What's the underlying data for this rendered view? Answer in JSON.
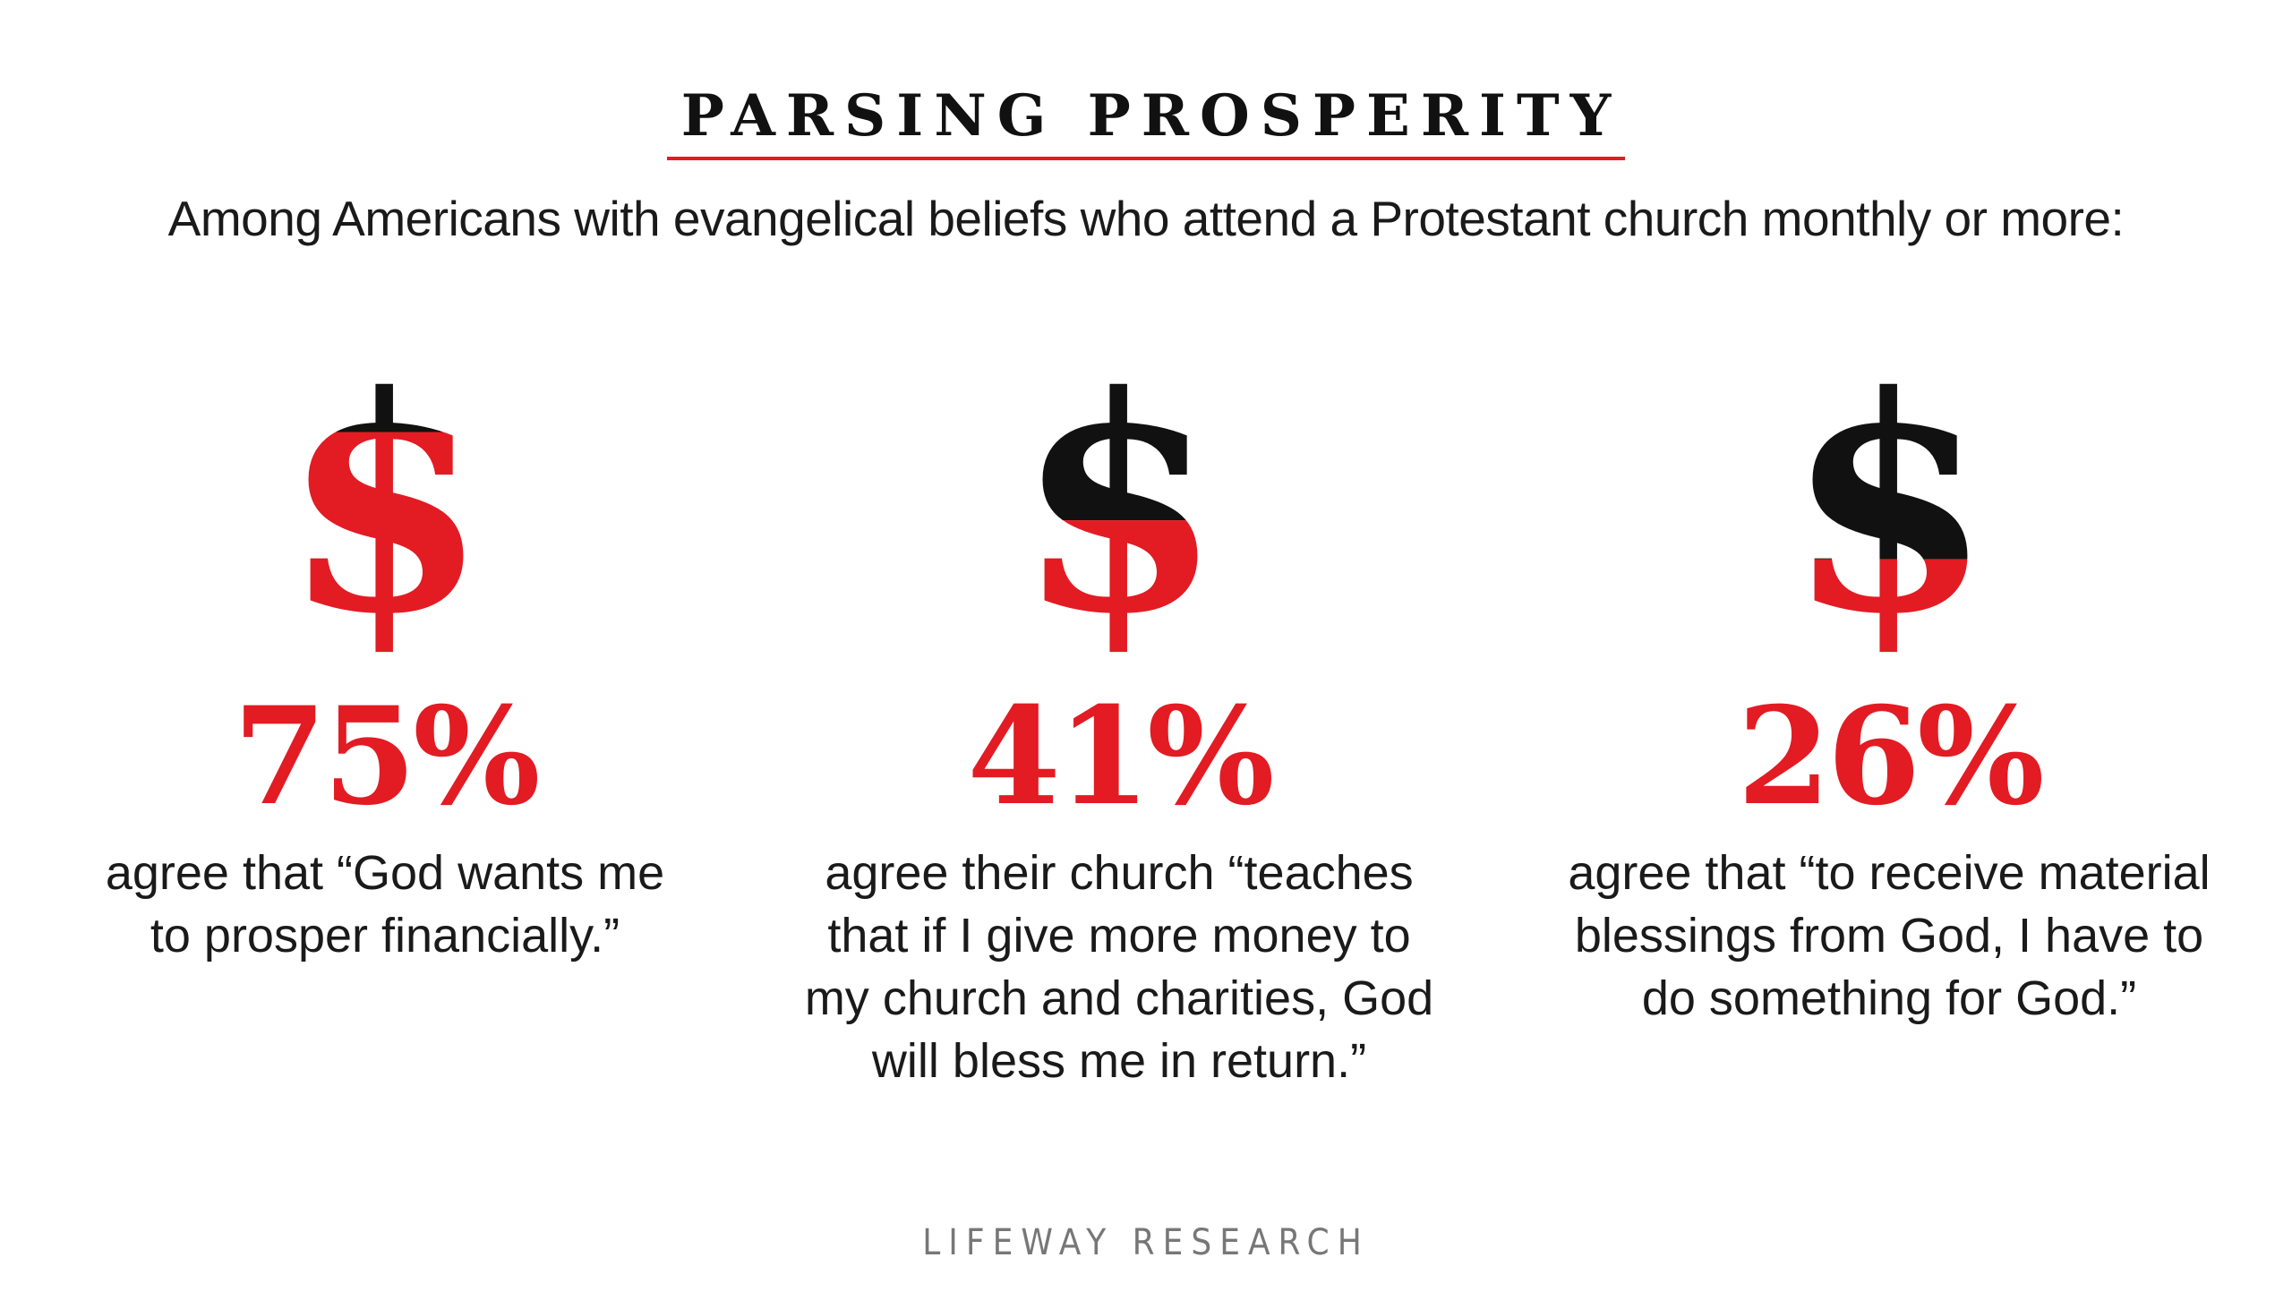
{
  "title": "PARSING PROSPERITY",
  "subtitle": "Among Americans with evangelical beliefs who attend a Protestant church monthly or more:",
  "footer": "LIFEWAY RESEARCH",
  "colors": {
    "accent_red": "#e31b23",
    "dollar_black": "#111111",
    "text": "#1a1a1a",
    "footer_gray": "#777777"
  },
  "chart_data": {
    "type": "pictograph",
    "icon": "dollar-sign",
    "stats": [
      {
        "value": 75,
        "label": "75%",
        "lines": [
          "agree that “God wants me",
          "to prosper financially.”"
        ]
      },
      {
        "value": 41,
        "label": "41%",
        "lines": [
          "agree their church “teaches",
          "that if I give more money to",
          "my church and charities, God",
          "will bless me in return.”"
        ]
      },
      {
        "value": 26,
        "label": "26%",
        "lines": [
          "agree that “to receive material",
          "blessings from God, I have to",
          "do something for God.”"
        ]
      }
    ]
  }
}
